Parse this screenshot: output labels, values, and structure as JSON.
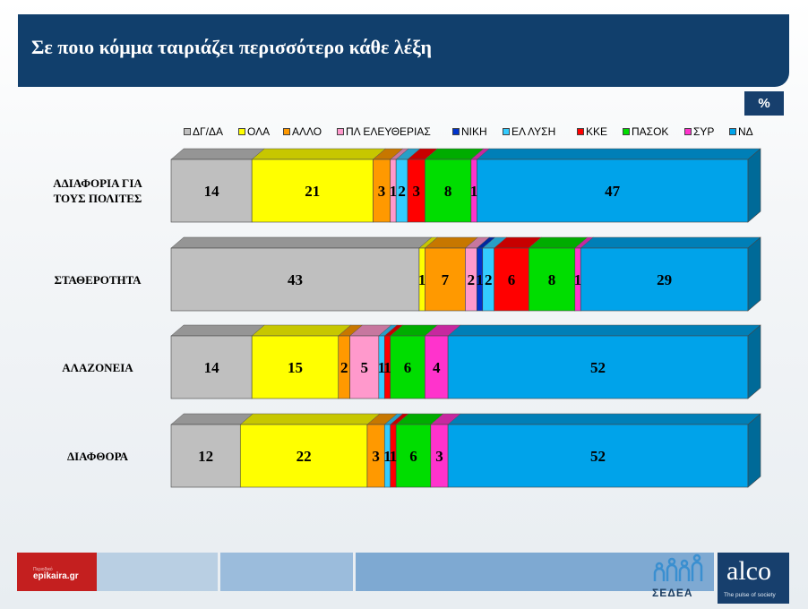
{
  "header": {
    "title": "Σε ποιο κόμμα ταιριάζει περισσότερο κάθε λέξη"
  },
  "unit_badge": "%",
  "footer": {
    "epikaira_sub": "Περιοδικό",
    "epikaira_main": "epikaira.gr",
    "sedea_text": "ΣΕΔΕΑ",
    "alco_brand": "alco",
    "alco_slogan": "The pulse of society"
  },
  "colors": {
    "ΔΓ/ΔΑ": "#bfbfbf",
    "ΟΛΑ": "#ffff00",
    "ΑΛΛΟ": "#ff9900",
    "ΠΛ ΕΛΕΥΘΕΡΙΑΣ": "#ff99cc",
    "ΝΙΚΗ": "#0033cc",
    "ΕΛ ΛΥΣΗ": "#33ccff",
    "ΚΚΕ": "#ff0000",
    "ΠΑΣΟΚ": "#00dd00",
    "ΣΥΡ": "#ff33cc",
    "ΝΔ": "#00a3ea"
  },
  "chart_data": {
    "type": "bar",
    "orientation": "horizontal",
    "stacked": true,
    "percent_stacked": true,
    "legend_position": "top",
    "categories": [
      "ΑΔΙΑΦΟΡΙΑ ΓΙΑ ΤΟΥΣ ΠΟΛΙΤΕΣ",
      "ΣΤΑΘΕΡΟΤΗΤΑ",
      "ΑΛΑΖΟΝΕΙΑ",
      "ΔΙΑΦΘΟΡΑ"
    ],
    "category_lines": [
      [
        "ΑΔΙΑΦΟΡΙΑ ΓΙΑ",
        "ΤΟΥΣ ΠΟΛΙΤΕΣ"
      ],
      [
        "ΣΤΑΘΕΡΟΤΗΤΑ"
      ],
      [
        "ΑΛΑΖΟΝΕΙΑ"
      ],
      [
        "ΔΙΑΦΘΟΡΑ"
      ]
    ],
    "series": [
      {
        "name": "ΔΓ/ΔΑ",
        "values": [
          14,
          43,
          14,
          12
        ]
      },
      {
        "name": "ΟΛΑ",
        "values": [
          21,
          1,
          15,
          22
        ]
      },
      {
        "name": "ΑΛΛΟ",
        "values": [
          3,
          7,
          2,
          3
        ]
      },
      {
        "name": "ΠΛ ΕΛΕΥΘΕΡΙΑΣ",
        "values": [
          1,
          2,
          5,
          0
        ]
      },
      {
        "name": "ΝΙΚΗ",
        "values": [
          0,
          1,
          0,
          0
        ]
      },
      {
        "name": "ΕΛ ΛΥΣΗ",
        "values": [
          2,
          2,
          1,
          1
        ]
      },
      {
        "name": "ΚΚΕ",
        "values": [
          3,
          6,
          1,
          1
        ]
      },
      {
        "name": "ΠΑΣΟΚ",
        "values": [
          8,
          8,
          6,
          6
        ]
      },
      {
        "name": "ΣΥΡ",
        "values": [
          1,
          1,
          4,
          3
        ]
      },
      {
        "name": "ΝΔ",
        "values": [
          47,
          29,
          52,
          52
        ]
      }
    ],
    "data_labels": [
      [
        "14",
        "21",
        "3",
        "1",
        "",
        "2",
        "3",
        "8",
        "1",
        "47"
      ],
      [
        "43",
        "1",
        "7",
        "2",
        "1",
        "2",
        "6",
        "8",
        "1",
        "29"
      ],
      [
        "14",
        "15",
        "2",
        "5",
        "",
        "1",
        "1",
        "6",
        "4",
        "52"
      ],
      [
        "12",
        "22",
        "3",
        "",
        "",
        "1",
        "1",
        "6",
        "3",
        "52"
      ]
    ]
  }
}
